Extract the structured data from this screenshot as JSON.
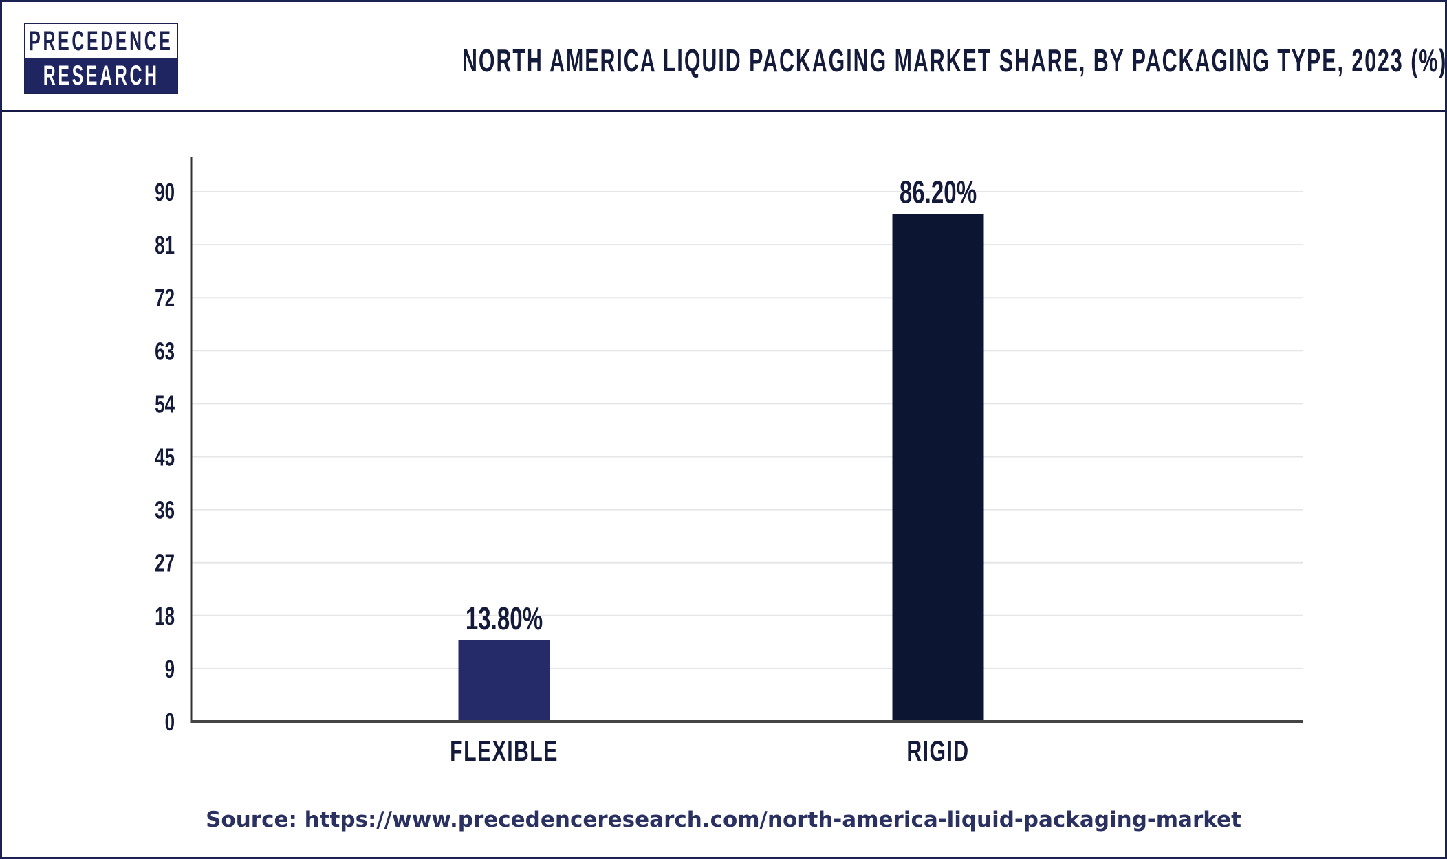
{
  "header": {
    "logo_line1": "PRECEDENCE",
    "logo_line2": "RESEARCH",
    "title": "NORTH AMERICA LIQUID PACKAGING MARKET SHARE, BY PACKAGING TYPE, 2023 (%)"
  },
  "chart_data": {
    "type": "bar",
    "title": "NORTH AMERICA LIQUID PACKAGING MARKET SHARE, BY PACKAGING TYPE, 2023 (%)",
    "categories": [
      "FLEXIBLE",
      "RIGID"
    ],
    "values": [
      13.8,
      86.2
    ],
    "data_labels": [
      "13.80%",
      "86.20%"
    ],
    "bar_colors": [
      "#252b68",
      "#0c1633"
    ],
    "yticks": [
      0,
      9,
      18,
      27,
      36,
      45,
      54,
      63,
      72,
      81,
      90
    ],
    "ylim": [
      0,
      90
    ],
    "xlabel": "",
    "ylabel": "",
    "grid": true,
    "legend": "none"
  },
  "footer": {
    "source": "Source: https://www.precedenceresearch.com/north-america-liquid-packaging-market"
  }
}
